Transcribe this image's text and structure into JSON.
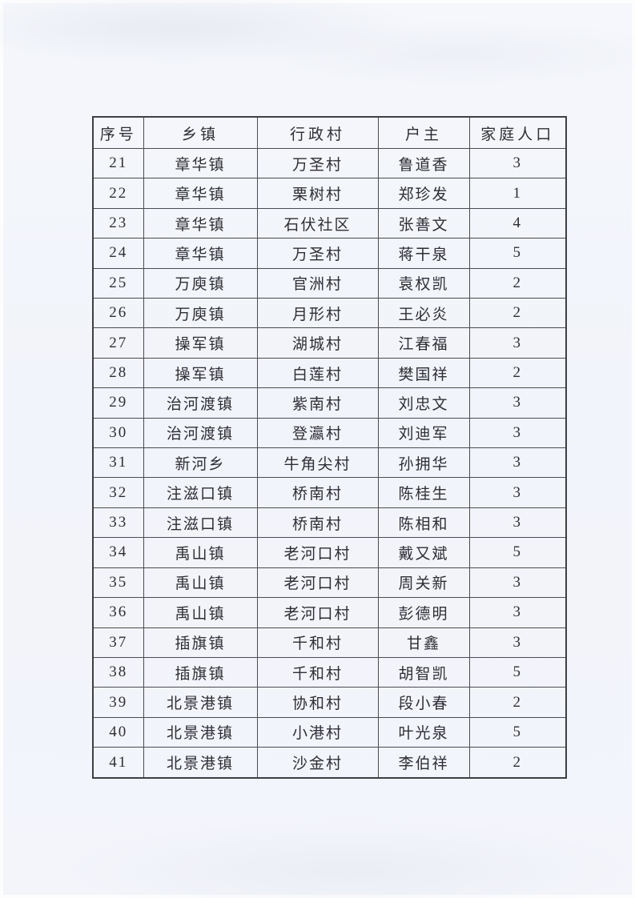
{
  "document": {
    "table": {
      "columns": [
        "序号",
        "乡镇",
        "行政村",
        "户主",
        "家庭人口"
      ],
      "rows": [
        [
          "21",
          "章华镇",
          "万圣村",
          "鲁道香",
          "3"
        ],
        [
          "22",
          "章华镇",
          "栗树村",
          "郑珍发",
          "1"
        ],
        [
          "23",
          "章华镇",
          "石伏社区",
          "张善文",
          "4"
        ],
        [
          "24",
          "章华镇",
          "万圣村",
          "蒋干泉",
          "5"
        ],
        [
          "25",
          "万庾镇",
          "官洲村",
          "袁权凯",
          "2"
        ],
        [
          "26",
          "万庾镇",
          "月形村",
          "王必炎",
          "2"
        ],
        [
          "27",
          "操军镇",
          "湖城村",
          "江春福",
          "3"
        ],
        [
          "28",
          "操军镇",
          "白莲村",
          "樊国祥",
          "2"
        ],
        [
          "29",
          "治河渡镇",
          "紫南村",
          "刘忠文",
          "3"
        ],
        [
          "30",
          "治河渡镇",
          "登瀛村",
          "刘迪军",
          "3"
        ],
        [
          "31",
          "新河乡",
          "牛角尖村",
          "孙拥华",
          "3"
        ],
        [
          "32",
          "注滋口镇",
          "桥南村",
          "陈桂生",
          "3"
        ],
        [
          "33",
          "注滋口镇",
          "桥南村",
          "陈相和",
          "3"
        ],
        [
          "34",
          "禹山镇",
          "老河口村",
          "戴又斌",
          "5"
        ],
        [
          "35",
          "禹山镇",
          "老河口村",
          "周关新",
          "3"
        ],
        [
          "36",
          "禹山镇",
          "老河口村",
          "彭德明",
          "3"
        ],
        [
          "37",
          "插旗镇",
          "千和村",
          "甘鑫",
          "3"
        ],
        [
          "38",
          "插旗镇",
          "千和村",
          "胡智凯",
          "5"
        ],
        [
          "39",
          "北景港镇",
          "协和村",
          "段小春",
          "2"
        ],
        [
          "40",
          "北景港镇",
          "小港村",
          "叶光泉",
          "5"
        ],
        [
          "41",
          "北景港镇",
          "沙金村",
          "李伯祥",
          "2"
        ]
      ]
    },
    "colors": {
      "paper": "#f3f5fb",
      "grid_line": "#4b4b52",
      "text": "#2e2e34"
    }
  }
}
